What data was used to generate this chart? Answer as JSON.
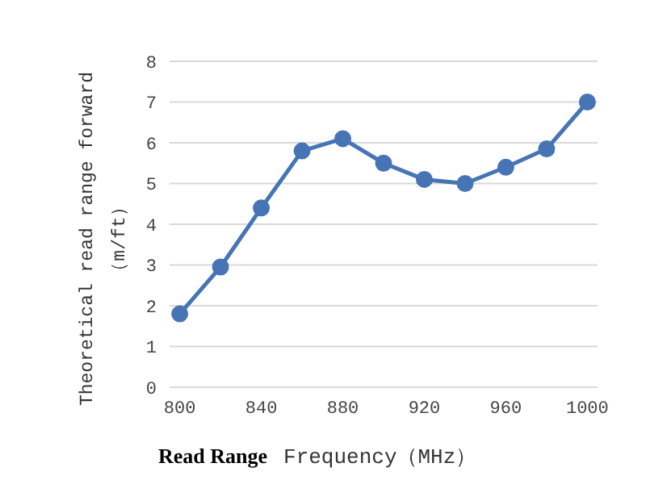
{
  "chart_data": {
    "type": "line",
    "xlabel": "Frequency（MHz）",
    "ylabel": "Theoretical read range forward（m/ft）",
    "annotations": [
      "Read Range"
    ],
    "x": [
      800,
      820,
      840,
      860,
      880,
      900,
      920,
      940,
      960,
      980,
      1000
    ],
    "series": [
      {
        "color": "#4674b4",
        "values": [
          1.8,
          2.95,
          4.4,
          5.8,
          6.1,
          5.5,
          5.1,
          5.0,
          5.4,
          5.85,
          7.0
        ]
      }
    ],
    "xlim": [
      795,
      1005
    ],
    "xticks": [
      800,
      840,
      880,
      920,
      960,
      1000
    ],
    "ylim": [
      0,
      8
    ],
    "yticks": [
      0,
      1,
      2,
      3,
      4,
      5,
      6,
      7,
      8
    ],
    "grid": "y",
    "legend": false,
    "marker": "circle",
    "line_style": "solid"
  }
}
